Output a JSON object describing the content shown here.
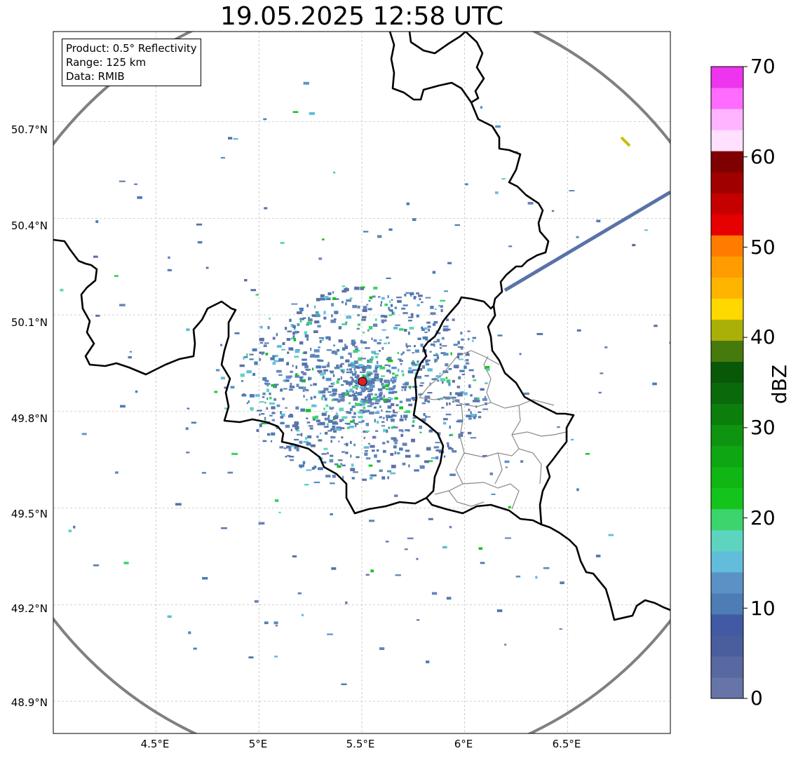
{
  "title": "19.05.2025 12:58 UTC",
  "info": {
    "product": "Product: 0.5° Reflectivity",
    "range": "Range: 125 km",
    "data": "Data: RMIB"
  },
  "axes": {
    "x_ticks": [
      "4.5°E",
      "5°E",
      "5.5°E",
      "6°E",
      "6.5°E"
    ],
    "y_ticks": [
      "50.7°N",
      "50.4°N",
      "50.1°N",
      "49.8°N",
      "49.5°N",
      "49.2°N",
      "48.9°N"
    ],
    "xlim": [
      4.0,
      7.0
    ],
    "ylim": [
      48.8,
      50.98
    ],
    "grid": true
  },
  "radar_site": {
    "lon": 5.505,
    "lat": 49.914,
    "marker_color": "#e02020"
  },
  "range_ring_color": "#808080",
  "colorbar": {
    "unit": "dBZ",
    "min": 0,
    "max": 70,
    "step": 2.5,
    "tick_labels": [
      "0",
      "10",
      "20",
      "30",
      "40",
      "50",
      "60",
      "70"
    ],
    "colors": [
      "#6674a8",
      "#5868a0",
      "#4a5e9e",
      "#425aa4",
      "#4e7cb4",
      "#5a92c6",
      "#62bcdc",
      "#5cd4c0",
      "#3cd46c",
      "#14c41c",
      "#10b614",
      "#0ea612",
      "#0e9410",
      "#0c7e0c",
      "#0a6a0a",
      "#085808",
      "#467a0c",
      "#aab008",
      "#ffd800",
      "#ffb400",
      "#ff9c00",
      "#ff7c00",
      "#e60000",
      "#c40000",
      "#a00000",
      "#7e0000",
      "#ffe0ff",
      "#ffb4ff",
      "#ff6cff",
      "#ee34ee"
    ]
  }
}
